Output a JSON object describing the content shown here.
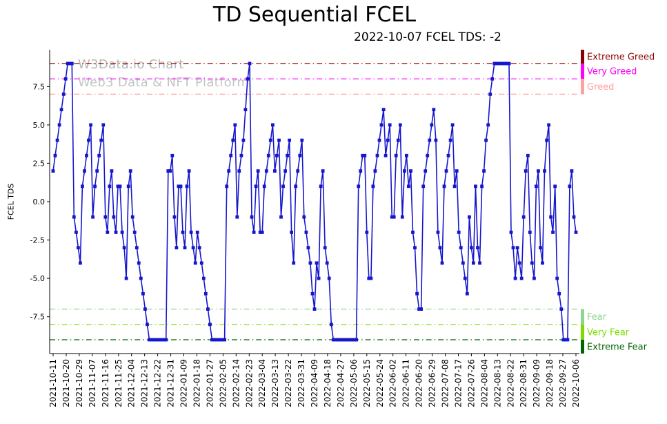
{
  "title": "TD Sequential FCEL",
  "subtitle": "2022-10-07 FCEL TDS: -2",
  "watermark": {
    "line1": "W3Data.io Chart",
    "line2": "Web3 Data & NFT Platform"
  },
  "thresholds": [
    {
      "label": "Extreme Greed",
      "value": 9,
      "color": "#8b0000",
      "band": [
        9.9,
        9
      ]
    },
    {
      "label": "Very Greed",
      "value": 8,
      "color": "#ff00ff",
      "band": [
        9,
        8
      ]
    },
    {
      "label": "Greed",
      "value": 7,
      "color": "#ff9f9f",
      "band": [
        8,
        7
      ]
    },
    {
      "label": "Fear",
      "value": -7,
      "color": "#8fd48f",
      "band": [
        -7,
        -8
      ]
    },
    {
      "label": "Very Fear",
      "value": -8,
      "color": "#7cdc00",
      "band": [
        -8,
        -9
      ]
    },
    {
      "label": "Extreme Fear",
      "value": -9,
      "color": "#006400",
      "band": [
        -9,
        -9.9
      ]
    }
  ],
  "chart_data": {
    "type": "line",
    "ylabel": "FCEL TDS",
    "ylim": [
      -9.9,
      9.9
    ],
    "grid": false,
    "legend": false,
    "y_ticks": [
      -7.5,
      -5.0,
      -2.5,
      0.0,
      2.5,
      5.0,
      7.5
    ],
    "x_tick_labels": [
      "2021-10-11",
      "2021-10-20",
      "2021-10-29",
      "2021-11-07",
      "2021-11-16",
      "2021-11-25",
      "2021-12-04",
      "2021-12-13",
      "2021-12-22",
      "2021-12-31",
      "2022-01-09",
      "2022-01-18",
      "2022-01-27",
      "2022-02-05",
      "2022-02-14",
      "2022-02-23",
      "2022-03-04",
      "2022-03-13",
      "2022-03-22",
      "2022-03-31",
      "2022-04-09",
      "2022-04-18",
      "2022-04-27",
      "2022-05-06",
      "2022-05-15",
      "2022-05-24",
      "2022-06-02",
      "2022-06-11",
      "2022-06-20",
      "2022-06-29",
      "2022-07-08",
      "2022-07-17",
      "2022-07-26",
      "2022-08-04",
      "2022-08-13",
      "2022-08-22",
      "2022-08-31",
      "2022-09-09",
      "2022-09-18",
      "2022-09-27",
      "2022-10-06"
    ],
    "series": [
      {
        "name": "FCEL TDS",
        "color": "#1616cd",
        "marker": "square",
        "values": [
          2,
          3,
          4,
          5,
          6,
          7,
          8,
          9,
          9,
          9,
          -1,
          -2,
          -3,
          -4,
          1,
          2,
          3,
          4,
          5,
          -1,
          1,
          2,
          3,
          4,
          5,
          -1,
          -2,
          1,
          2,
          -1,
          -2,
          1,
          1,
          -2,
          -3,
          -5,
          1,
          2,
          -1,
          -2,
          -3,
          -4,
          -5,
          -6,
          -7,
          -8,
          -9,
          -9,
          -9,
          -9,
          -9,
          -9,
          -9,
          -9,
          -9,
          2,
          2,
          3,
          -1,
          -3,
          1,
          1,
          -2,
          -3,
          1,
          2,
          -2,
          -3,
          -4,
          -2,
          -3,
          -4,
          -5,
          -6,
          -7,
          -8,
          -9,
          -9,
          -9,
          -9,
          -9,
          -9,
          -9,
          1,
          2,
          3,
          4,
          5,
          -1,
          2,
          3,
          4,
          6,
          8,
          9,
          -1,
          -2,
          1,
          2,
          -2,
          -2,
          1,
          2,
          3,
          4,
          5,
          2,
          3,
          4,
          -1,
          1,
          2,
          3,
          4,
          -2,
          -4,
          1,
          2,
          3,
          4,
          -1,
          -2,
          -3,
          -4,
          -6,
          -7,
          -4,
          -5,
          1,
          2,
          -3,
          -4,
          -5,
          -8,
          -9,
          -9,
          -9,
          -9,
          -9,
          -9,
          -9,
          -9,
          -9,
          -9,
          -9,
          -9,
          1,
          2,
          3,
          3,
          -2,
          -5,
          -5,
          1,
          2,
          3,
          4,
          5,
          6,
          3,
          4,
          5,
          -1,
          -1,
          3,
          4,
          5,
          -1,
          2,
          3,
          1,
          2,
          -2,
          -3,
          -6,
          -7,
          -7,
          1,
          2,
          3,
          4,
          5,
          6,
          4,
          -2,
          -3,
          -4,
          1,
          2,
          3,
          4,
          5,
          1,
          2,
          -2,
          -3,
          -4,
          -5,
          -6,
          -1,
          -3,
          -4,
          1,
          -3,
          -4,
          1,
          2,
          4,
          5,
          7,
          8,
          9,
          9,
          9,
          9,
          9,
          9,
          9,
          9,
          -2,
          -3,
          -5,
          -3,
          -4,
          -5,
          -1,
          2,
          3,
          -2,
          -4,
          -5,
          1,
          2,
          -3,
          -4,
          2,
          4,
          5,
          -1,
          -2,
          1,
          -5,
          -6,
          -7,
          -9,
          -9,
          -9,
          1,
          2,
          -1,
          -2
        ]
      }
    ]
  }
}
